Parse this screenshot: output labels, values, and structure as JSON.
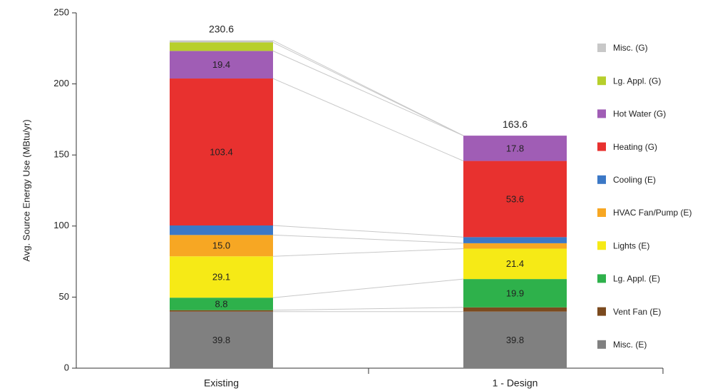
{
  "chart_data": {
    "type": "stacked_bar",
    "y_label": "Avg. Source Energy Use (MBtu/yr)",
    "categories": [
      "Existing",
      "1 - Design"
    ],
    "ylim": [
      0,
      250
    ],
    "yticks": [
      0,
      50,
      100,
      150,
      200,
      250
    ],
    "totals": [
      230.6,
      163.6
    ],
    "series": [
      {
        "name": "Misc. (E)",
        "color": "#808080",
        "values": [
          39.8,
          39.8
        ],
        "value_labels": [
          "39.8",
          "39.8"
        ]
      },
      {
        "name": "Vent Fan (E)",
        "color": "#7b4a1e",
        "values": [
          1.0,
          3.0
        ],
        "value_labels": [
          null,
          null
        ]
      },
      {
        "name": "Lg. Appl. (E)",
        "color": "#2eb14b",
        "values": [
          8.8,
          19.9
        ],
        "value_labels": [
          "8.8",
          "19.9"
        ]
      },
      {
        "name": "Lights (E)",
        "color": "#f6ea16",
        "values": [
          29.1,
          21.4
        ],
        "value_labels": [
          "29.1",
          "21.4"
        ]
      },
      {
        "name": "HVAC Fan/Pump (E)",
        "color": "#f7a723",
        "values": [
          15.0,
          3.8
        ],
        "value_labels": [
          "15.0",
          null
        ]
      },
      {
        "name": "Cooling (E)",
        "color": "#3b78c6",
        "values": [
          6.7,
          4.3
        ],
        "value_labels": [
          null,
          null
        ]
      },
      {
        "name": "Heating (G)",
        "color": "#e8312f",
        "values": [
          103.4,
          53.6
        ],
        "value_labels": [
          "103.4",
          "53.6"
        ]
      },
      {
        "name": "Hot Water (G)",
        "color": "#a05db5",
        "values": [
          19.4,
          17.8
        ],
        "value_labels": [
          "19.4",
          "17.8"
        ]
      },
      {
        "name": "Lg. Appl. (G)",
        "color": "#b7cf2c",
        "values": [
          6.0,
          0
        ],
        "value_labels": [
          null,
          null
        ]
      },
      {
        "name": "Misc. (G)",
        "color": "#c8c8c8",
        "values": [
          1.4,
          0
        ],
        "value_labels": [
          null,
          null
        ]
      }
    ]
  }
}
